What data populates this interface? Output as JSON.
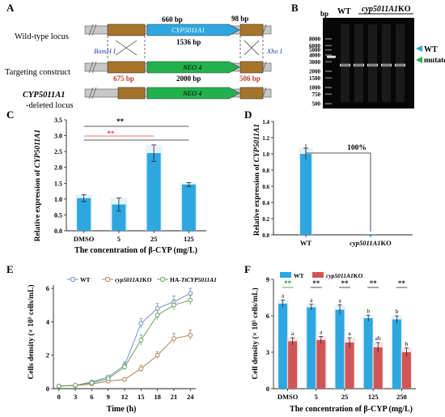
{
  "panels": {
    "A": {
      "letter": "A",
      "rows": {
        "wildtype": "Wild-type locus",
        "targeting": "Targeting construct",
        "deleted_line1": "CYP5011A1",
        "deleted_line2": "-deleted locus"
      },
      "labels": {
        "bp660": "660 bp",
        "bp98": "98 bp",
        "gene": "CYP5011A1",
        "gene_len": "1536 bp",
        "bamh1": "BamH I",
        "xho1": "Xho I",
        "neo_top": "NEO 4",
        "neo_len": "2000 bp",
        "left_arm": "675 bp",
        "right_arm": "506 bp",
        "neo_bottom": "NEO 4"
      }
    },
    "B": {
      "letter": "B",
      "bp_label": "bp",
      "lane_wt": "WT",
      "lane_ko_prefix": "cyp5011A1",
      "lane_ko_suffix": "KO",
      "ladder": [
        "8000",
        "6000",
        "5000",
        "4000",
        "3000",
        "2000",
        "1500",
        "1000",
        "750",
        "500"
      ],
      "legend_wt": "WT",
      "legend_mut": "mutated"
    },
    "C": {
      "letter": "C",
      "ylabel_prefix": "Relative expression of ",
      "ylabel_gene": "CYP5011A1",
      "xlabel": "The concentration of β-CYP (mg/L)",
      "sig1": "**",
      "sig2": "**"
    },
    "D": {
      "letter": "D",
      "ylabel_prefix": "Relative expression of ",
      "ylabel_gene": "CYP5011A1",
      "annotation": "100%"
    },
    "E": {
      "letter": "E",
      "ylabel": "Cells density (× 10⁵ cells/mL)",
      "xlabel": "Time (h)",
      "legend": {
        "wt": "WT",
        "ko_gene": "cyp5011A1",
        "ko_suffix": "KO",
        "ha_prefix": "HA-",
        "ha_gene": "TtCYP5011A1"
      }
    },
    "F": {
      "letter": "F",
      "ylabel": "Cell density (× 10⁵ cells/mL)",
      "xlabel": "The concentration of β-CYP (mg/L)",
      "legend": {
        "wt": "WT",
        "ko_gene": "cyp5011A1",
        "ko_suffix": "KO"
      }
    }
  },
  "colors": {
    "blue": "#2ea7e0",
    "green": "#23b14d",
    "brown": "#a7752a",
    "gray_arm": "#c8c8c8",
    "red": "#d05557",
    "wt_line": "#6f8fd6",
    "ko_line": "#b27f57",
    "ha_line": "#69a25a",
    "sig_red": "#e8414a",
    "sig_green": "#2b9a45"
  },
  "chart_data": [
    {
      "panel": "C",
      "type": "bar",
      "categories": [
        "DMSO",
        "5",
        "25",
        "125"
      ],
      "values": [
        1.03,
        0.83,
        2.45,
        1.46
      ],
      "errors": [
        0.11,
        0.21,
        0.26,
        0.06
      ],
      "ylim": [
        0,
        3.5
      ],
      "yticks": [
        "0.0",
        "0.5",
        "1.0",
        "1.5",
        "2.0",
        "2.5",
        "3.0",
        "3.5"
      ],
      "significance": [
        {
          "from": "DMSO",
          "to": "125",
          "label": "**",
          "color": "black"
        },
        {
          "from": "DMSO",
          "to": "25",
          "label": "**",
          "color": "red"
        },
        {
          "from": "DMSO",
          "to": "125",
          "label": "",
          "color": "black"
        }
      ]
    },
    {
      "panel": "D",
      "type": "bar",
      "categories": [
        "WT",
        "cyp5011A1KO"
      ],
      "values": [
        1.0,
        0.0
      ],
      "errors": [
        0.07,
        0
      ],
      "ylim": [
        0,
        1.4
      ],
      "yticks": [
        "0.0",
        "0.2",
        "0.4",
        "0.6",
        "0.8",
        "1.0",
        "1.2",
        "1.4"
      ]
    },
    {
      "panel": "E",
      "type": "line",
      "xlim": [
        -1,
        25
      ],
      "ylim": [
        0,
        6.2
      ],
      "xticks": [
        0,
        3,
        6,
        9,
        12,
        15,
        18,
        21,
        24
      ],
      "yticks": [
        0,
        2,
        4,
        6
      ],
      "series": [
        {
          "name": "WT",
          "x": [
            0,
            3,
            6,
            9,
            12,
            15,
            18,
            21,
            24
          ],
          "y": [
            0.15,
            0.2,
            0.4,
            0.7,
            1.4,
            3.9,
            4.8,
            5.2,
            5.7
          ],
          "err": [
            0.03,
            0.04,
            0.06,
            0.1,
            0.2,
            0.3,
            0.3,
            0.35,
            0.3
          ]
        },
        {
          "name": "cyp5011A1KO",
          "x": [
            0,
            3,
            6,
            9,
            12,
            15,
            18,
            21,
            24
          ],
          "y": [
            0.15,
            0.18,
            0.28,
            0.45,
            0.55,
            1.2,
            2.0,
            3.0,
            3.2
          ],
          "err": [
            0.03,
            0.03,
            0.05,
            0.08,
            0.1,
            0.2,
            0.2,
            0.3,
            0.3
          ]
        },
        {
          "name": "HA-TtCYP5011A1",
          "x": [
            0,
            3,
            6,
            9,
            12,
            15,
            18,
            21,
            24
          ],
          "y": [
            0.15,
            0.2,
            0.35,
            0.6,
            1.3,
            2.9,
            4.4,
            5.0,
            5.3
          ],
          "err": [
            0.03,
            0.04,
            0.06,
            0.1,
            0.2,
            0.3,
            0.3,
            0.3,
            0.3
          ]
        }
      ]
    },
    {
      "panel": "F",
      "type": "bar",
      "categories": [
        "DMSO",
        "5",
        "25",
        "125",
        "250"
      ],
      "ylim": [
        0,
        9
      ],
      "yticks": [
        0,
        3,
        6,
        9
      ],
      "series": [
        {
          "name": "WT",
          "values": [
            7.0,
            6.7,
            6.5,
            5.8,
            5.7
          ],
          "errors": [
            0.3,
            0.25,
            0.4,
            0.25,
            0.3
          ],
          "letters": [
            "a",
            "a",
            "a",
            "b",
            "b"
          ]
        },
        {
          "name": "cyp5011A1KO",
          "values": [
            3.9,
            4.0,
            3.8,
            3.4,
            3.0
          ],
          "errors": [
            0.3,
            0.3,
            0.4,
            0.4,
            0.35
          ],
          "letters": [
            "a",
            "a",
            "a",
            "ab",
            "b"
          ]
        }
      ],
      "significance": [
        {
          "category": "DMSO",
          "label": "**",
          "color": "green"
        },
        {
          "category": "5",
          "label": "**",
          "color": "black"
        },
        {
          "category": "25",
          "label": "**",
          "color": "black"
        },
        {
          "category": "125",
          "label": "**",
          "color": "black"
        },
        {
          "category": "250",
          "label": "**",
          "color": "black"
        }
      ]
    }
  ]
}
